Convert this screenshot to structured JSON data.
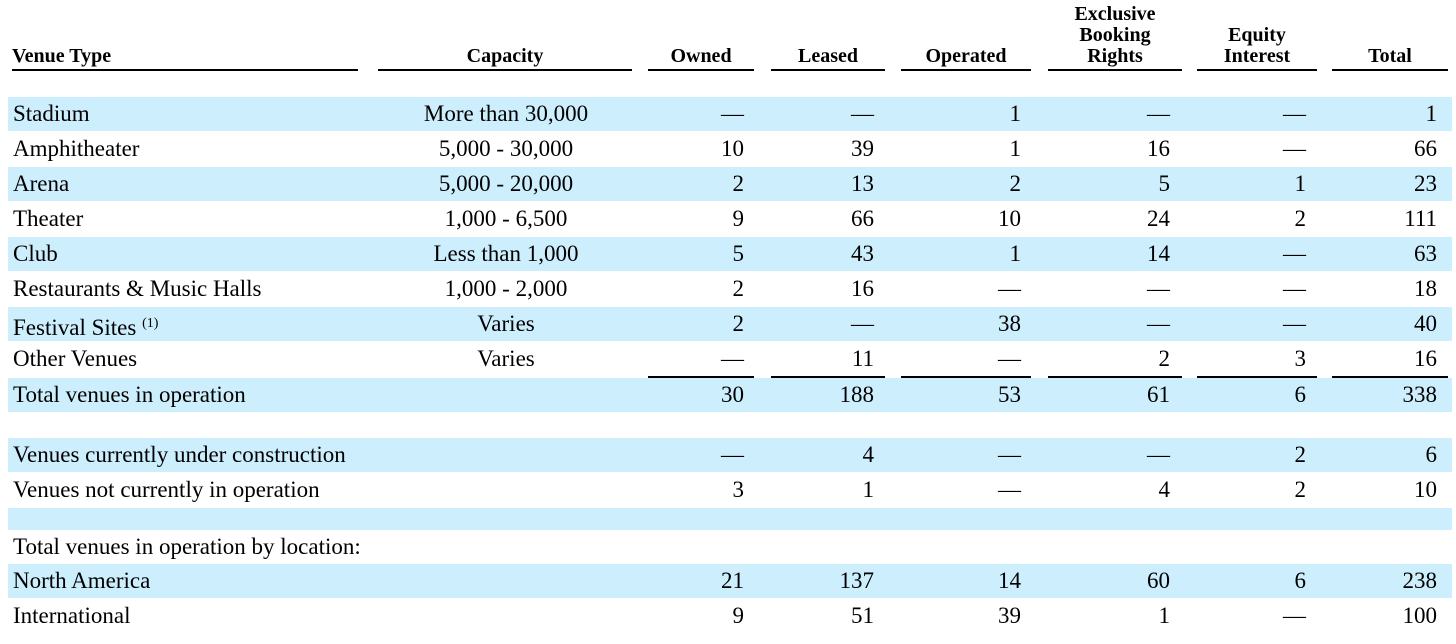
{
  "columns": {
    "venue_type": "Venue Type",
    "capacity": "Capacity",
    "owned": "Owned",
    "leased": "Leased",
    "operated": "Operated",
    "exclusive_booking_rights": [
      "Exclusive",
      "Booking",
      "Rights"
    ],
    "equity_interest": [
      "Equity",
      "Interest"
    ],
    "total": "Total"
  },
  "rows": [
    {
      "label": "Stadium",
      "capacity": "More than 30,000",
      "owned": "—",
      "leased": "—",
      "operated": "1",
      "exclusive": "—",
      "equity": "—",
      "total": "1"
    },
    {
      "label": "Amphitheater",
      "capacity": "5,000 - 30,000",
      "owned": "10",
      "leased": "39",
      "operated": "1",
      "exclusive": "16",
      "equity": "—",
      "total": "66"
    },
    {
      "label": "Arena",
      "capacity": "5,000 - 20,000",
      "owned": "2",
      "leased": "13",
      "operated": "2",
      "exclusive": "5",
      "equity": "1",
      "total": "23"
    },
    {
      "label": "Theater",
      "capacity": "1,000 - 6,500",
      "owned": "9",
      "leased": "66",
      "operated": "10",
      "exclusive": "24",
      "equity": "2",
      "total": "111"
    },
    {
      "label": "Club",
      "capacity": "Less than 1,000",
      "owned": "5",
      "leased": "43",
      "operated": "1",
      "exclusive": "14",
      "equity": "—",
      "total": "63"
    },
    {
      "label": "Restaurants & Music Halls",
      "capacity": "1,000 - 2,000",
      "owned": "2",
      "leased": "16",
      "operated": "—",
      "exclusive": "—",
      "equity": "—",
      "total": "18"
    },
    {
      "label": "Festival Sites",
      "footnote": "(1)",
      "capacity": "Varies",
      "owned": "2",
      "leased": "—",
      "operated": "38",
      "exclusive": "—",
      "equity": "—",
      "total": "40"
    },
    {
      "label": "Other Venues",
      "capacity": "Varies",
      "owned": "—",
      "leased": "11",
      "operated": "—",
      "exclusive": "2",
      "equity": "3",
      "total": "16"
    },
    {
      "label": "Total venues in operation",
      "capacity": "",
      "owned": "30",
      "leased": "188",
      "operated": "53",
      "exclusive": "61",
      "equity": "6",
      "total": "338"
    },
    {
      "label": "Venues currently under construction",
      "capacity": "",
      "owned": "—",
      "leased": "4",
      "operated": "—",
      "exclusive": "—",
      "equity": "2",
      "total": "6"
    },
    {
      "label": "Venues not currently in operation",
      "capacity": "",
      "owned": "3",
      "leased": "1",
      "operated": "—",
      "exclusive": "4",
      "equity": "2",
      "total": "10"
    },
    {
      "label": "",
      "capacity": "",
      "owned": "",
      "leased": "",
      "operated": "",
      "exclusive": "",
      "equity": "",
      "total": ""
    },
    {
      "label": "Total venues in operation by location:",
      "capacity": "",
      "owned": "",
      "leased": "",
      "operated": "",
      "exclusive": "",
      "equity": "",
      "total": ""
    },
    {
      "label": "North America",
      "capacity": "",
      "owned": "21",
      "leased": "137",
      "operated": "14",
      "exclusive": "60",
      "equity": "6",
      "total": "238"
    },
    {
      "label": "International",
      "capacity": "",
      "owned": "9",
      "leased": "51",
      "operated": "39",
      "exclusive": "1",
      "equity": "—",
      "total": "100"
    }
  ]
}
